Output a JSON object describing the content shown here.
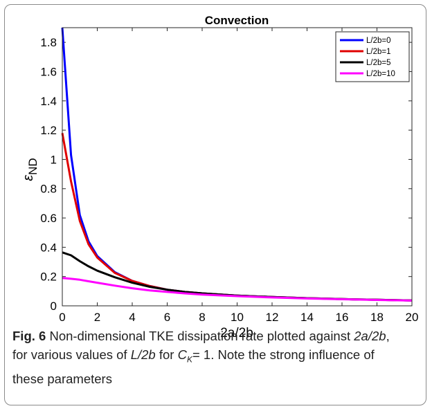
{
  "chart_data": {
    "type": "line",
    "title": "Convection",
    "xlabel": "2a/2b",
    "ylabel_main": "ε",
    "ylabel_sub": "ND",
    "xlim": [
      0,
      20
    ],
    "ylim": [
      0,
      1.9
    ],
    "xticks": [
      0,
      2,
      4,
      6,
      8,
      10,
      12,
      14,
      16,
      18,
      20
    ],
    "yticks": [
      0,
      0.2,
      0.4,
      0.6,
      0.8,
      1,
      1.2,
      1.4,
      1.6,
      1.8
    ],
    "legend_position": "top-right",
    "series": [
      {
        "name": "L/2b=0",
        "color": "#0000ff",
        "x": [
          0,
          0.5,
          1,
          1.5,
          2,
          3,
          4,
          5,
          6,
          7,
          8,
          10,
          12,
          14,
          16,
          18,
          20
        ],
        "y": [
          1.9,
          1.03,
          0.62,
          0.44,
          0.34,
          0.23,
          0.17,
          0.135,
          0.11,
          0.095,
          0.085,
          0.07,
          0.06,
          0.052,
          0.046,
          0.041,
          0.037
        ]
      },
      {
        "name": "L/2b=1",
        "color": "#e00000",
        "x": [
          0,
          0.5,
          1,
          1.5,
          2,
          3,
          4,
          5,
          6,
          7,
          8,
          10,
          12,
          14,
          16,
          18,
          20
        ],
        "y": [
          1.18,
          0.85,
          0.58,
          0.42,
          0.33,
          0.225,
          0.17,
          0.135,
          0.11,
          0.095,
          0.085,
          0.07,
          0.06,
          0.052,
          0.046,
          0.041,
          0.037
        ]
      },
      {
        "name": "L/2b=5",
        "color": "#000000",
        "x": [
          0,
          0.5,
          1,
          1.5,
          2,
          3,
          4,
          5,
          6,
          7,
          8,
          10,
          12,
          14,
          16,
          18,
          20
        ],
        "y": [
          0.365,
          0.345,
          0.305,
          0.27,
          0.24,
          0.195,
          0.158,
          0.13,
          0.11,
          0.095,
          0.085,
          0.07,
          0.06,
          0.052,
          0.046,
          0.041,
          0.037
        ]
      },
      {
        "name": "L/2b=10",
        "color": "#ff00ff",
        "x": [
          0,
          0.5,
          1,
          1.5,
          2,
          3,
          4,
          5,
          6,
          7,
          8,
          10,
          12,
          14,
          16,
          18,
          20
        ],
        "y": [
          0.19,
          0.185,
          0.178,
          0.168,
          0.158,
          0.138,
          0.12,
          0.105,
          0.095,
          0.085,
          0.077,
          0.066,
          0.057,
          0.05,
          0.045,
          0.04,
          0.036
        ]
      }
    ]
  },
  "caption": {
    "fig_label": "Fig. 6",
    "text_1": " Non-dimensional TKE dissipation rate plotted against ",
    "italic_1": "2a/2b",
    "text_2": ",",
    "text_3": "for various values of ",
    "italic_2": "L/2b",
    "text_4": " for ",
    "ck_main": "C",
    "ck_sub": "K",
    "text_5": "= 1. Note the strong influence of",
    "text_6": "these parameters"
  }
}
